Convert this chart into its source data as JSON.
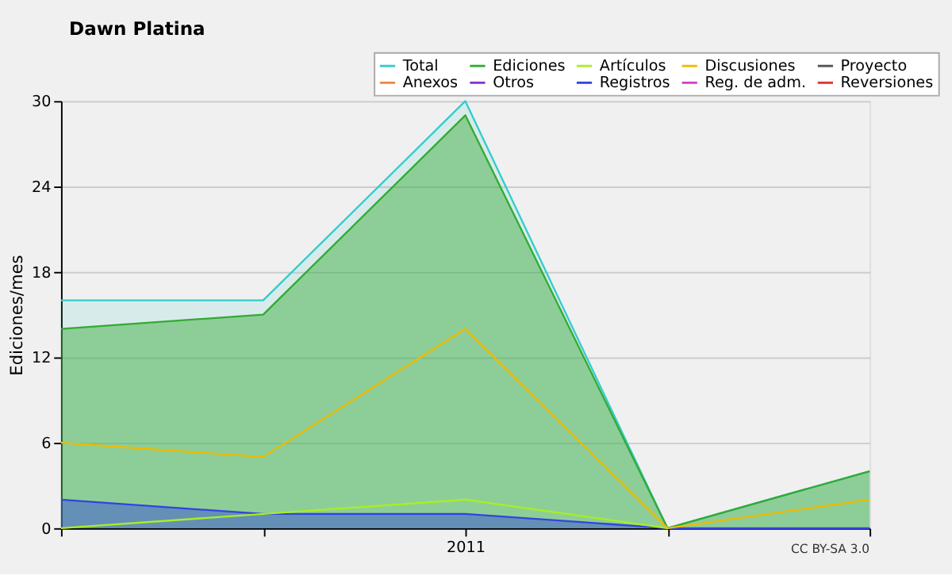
{
  "chart_data": {
    "type": "line",
    "title": "Dawn Platina",
    "ylabel": "Ediciones/mes",
    "categories": [
      null,
      null,
      "2011",
      null,
      null
    ],
    "ylim": [
      0,
      30
    ],
    "yticks": [
      0,
      6,
      12,
      18,
      24,
      30
    ],
    "grid": "y",
    "legend": "top right",
    "series": [
      {
        "name": "Total",
        "type": "area",
        "color": "#33cccc",
        "values": [
          16,
          16,
          30,
          0,
          4
        ]
      },
      {
        "name": "Ediciones",
        "type": "area",
        "color": "#33aa33",
        "values": [
          14,
          15,
          29,
          0,
          4
        ]
      },
      {
        "name": "Artículos",
        "color": "#aaee22",
        "values": [
          0,
          1,
          2,
          0,
          null
        ]
      },
      {
        "name": "Discusiones",
        "color": "#eebb00",
        "values": [
          6,
          5,
          14,
          0,
          2
        ]
      },
      {
        "name": "Proyecto",
        "color": "#555555",
        "values": [
          null,
          null,
          null,
          null,
          null
        ]
      },
      {
        "name": "Anexos",
        "color": "#ee8844",
        "values": [
          null,
          null,
          null,
          null,
          null
        ]
      },
      {
        "name": "Otros",
        "color": "#8833cc",
        "values": [
          null,
          null,
          null,
          null,
          null
        ]
      },
      {
        "name": "Registros",
        "type": "area",
        "color": "#3344dd",
        "values": [
          2,
          1,
          1,
          0,
          0
        ]
      },
      {
        "name": "Reg. de adm.",
        "color": "#cc44cc",
        "values": [
          null,
          null,
          null,
          null,
          null
        ]
      },
      {
        "name": "Reversiones",
        "color": "#dd3333",
        "values": [
          null,
          null,
          null,
          null,
          null
        ]
      }
    ],
    "annotations": [
      "CC BY-SA 3.0"
    ]
  }
}
